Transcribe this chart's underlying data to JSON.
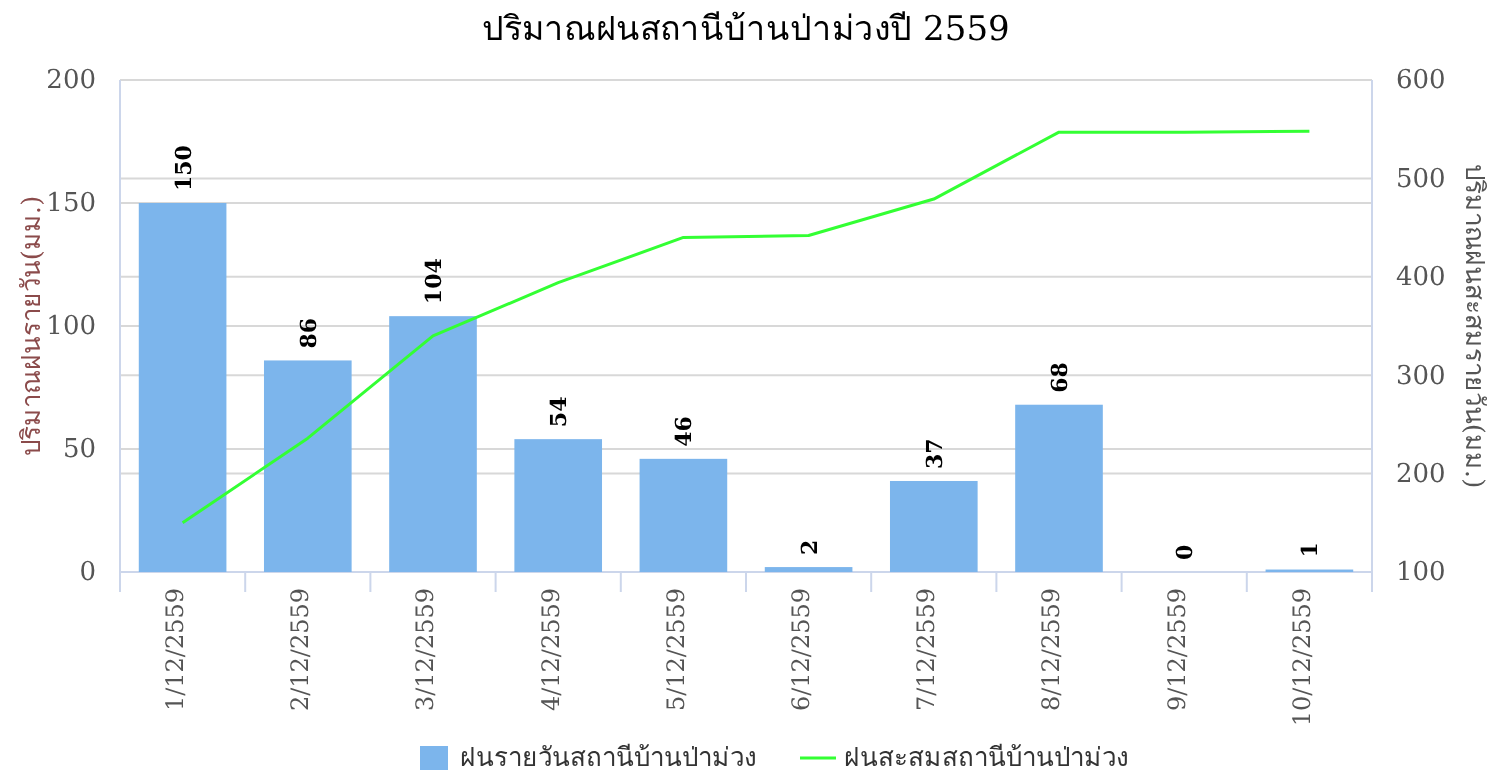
{
  "chart_data": {
    "type": "bar",
    "title": "ปริมาณฝนสถานีบ้านป่าม่วงปี 2559",
    "ylabel": "ปริมาณฝนรายวัน(มม.)",
    "y2label": "ปริมาณฝนสะสมรายวัน(มม.)",
    "categories": [
      "1/12/2559",
      "2/12/2559",
      "3/12/2559",
      "4/12/2559",
      "5/12/2559",
      "6/12/2559",
      "7/12/2559",
      "8/12/2559",
      "9/12/2559",
      "10/12/2559"
    ],
    "series": [
      {
        "name": "ฝนรายวันสถานีบ้านป่าม่วง",
        "color": "#7cb5ec",
        "values": [
          150,
          86,
          104,
          54,
          46,
          2,
          37,
          68,
          0,
          1
        ],
        "value_labels": [
          "150",
          "86",
          "104",
          "54",
          "46",
          "2",
          "37",
          "68",
          "0",
          "1"
        ]
      },
      {
        "name": "ฝนสะสมสถานีบ้านป่าม่วง",
        "type": "line",
        "axis": "y2",
        "color": "#33ff33",
        "values": [
          150,
          236,
          340,
          394,
          440,
          442,
          479,
          547,
          547,
          548
        ]
      }
    ],
    "ylim": [
      0,
      200
    ],
    "yticks": [
      0,
      50,
      100,
      150,
      200
    ],
    "y2lim": [
      100,
      600
    ],
    "y2ticks": [
      100,
      200,
      300,
      400,
      500,
      600
    ],
    "grid": true,
    "legend": "bottom",
    "marker": "none",
    "line_style": "solid"
  }
}
